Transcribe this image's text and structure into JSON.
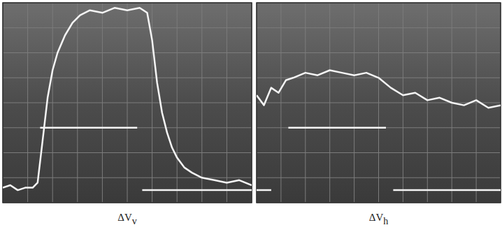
{
  "chart_data": [
    {
      "type": "line",
      "title": "ΔVv",
      "grid": true,
      "tick_labels": false,
      "xlim": [
        0,
        10
      ],
      "ylim": [
        0,
        8
      ],
      "xticks": [
        0,
        1,
        2,
        3,
        4,
        5,
        6,
        7,
        8,
        9,
        10
      ],
      "yticks": [
        0,
        1,
        2,
        3,
        4,
        5,
        6,
        7,
        8
      ],
      "series": [
        {
          "color": "#f4f4f4",
          "x": [
            0,
            0.3,
            0.6,
            0.9,
            1.2,
            1.4,
            1.6,
            1.8,
            2.0,
            2.2,
            2.5,
            2.8,
            3.1,
            3.5,
            4.0,
            4.5,
            5.0,
            5.5,
            5.8,
            6.0,
            6.2,
            6.4,
            6.6,
            6.8,
            7.0,
            7.3,
            7.6,
            8.0,
            8.5,
            9.0,
            9.5,
            10
          ],
          "values": [
            0.6,
            0.7,
            0.5,
            0.6,
            0.6,
            0.8,
            2.5,
            4.2,
            5.3,
            6.0,
            6.7,
            7.2,
            7.5,
            7.7,
            7.6,
            7.8,
            7.7,
            7.8,
            7.6,
            6.5,
            4.8,
            3.6,
            2.8,
            2.2,
            1.8,
            1.4,
            1.2,
            1.0,
            0.9,
            0.8,
            0.9,
            0.7
          ]
        },
        {
          "color": "#f4f4f4",
          "x": [
            1.5,
            5.4,
            5.5,
            5.6,
            10
          ],
          "values": [
            3.0,
            3.0,
            null,
            0.5,
            0.5
          ]
        }
      ]
    },
    {
      "type": "line",
      "title": "ΔVh",
      "grid": true,
      "tick_labels": false,
      "xlim": [
        0,
        10
      ],
      "ylim": [
        0,
        8
      ],
      "xticks": [
        0,
        1,
        2,
        3,
        4,
        5,
        6,
        7,
        8,
        9,
        10
      ],
      "yticks": [
        0,
        1,
        2,
        3,
        4,
        5,
        6,
        7,
        8
      ],
      "series": [
        {
          "color": "#f4f4f4",
          "x": [
            0,
            0.3,
            0.6,
            0.9,
            1.2,
            1.5,
            2.0,
            2.5,
            3.0,
            3.5,
            4.0,
            4.5,
            5.0,
            5.5,
            6.0,
            6.5,
            7.0,
            7.5,
            8.0,
            8.5,
            9.0,
            9.5,
            10
          ],
          "values": [
            4.3,
            3.9,
            4.6,
            4.4,
            4.9,
            5.0,
            5.2,
            5.1,
            5.3,
            5.2,
            5.1,
            5.2,
            5.0,
            4.6,
            4.3,
            4.4,
            4.1,
            4.2,
            4.0,
            3.9,
            4.1,
            3.8,
            3.9
          ]
        },
        {
          "color": "#f4f4f4",
          "x": [
            0,
            0.6,
            1.0,
            1.3,
            5.3,
            5.5,
            5.6,
            10
          ],
          "values": [
            0.5,
            0.5,
            null,
            3.0,
            3.0,
            null,
            0.5,
            0.5
          ]
        }
      ]
    }
  ]
}
